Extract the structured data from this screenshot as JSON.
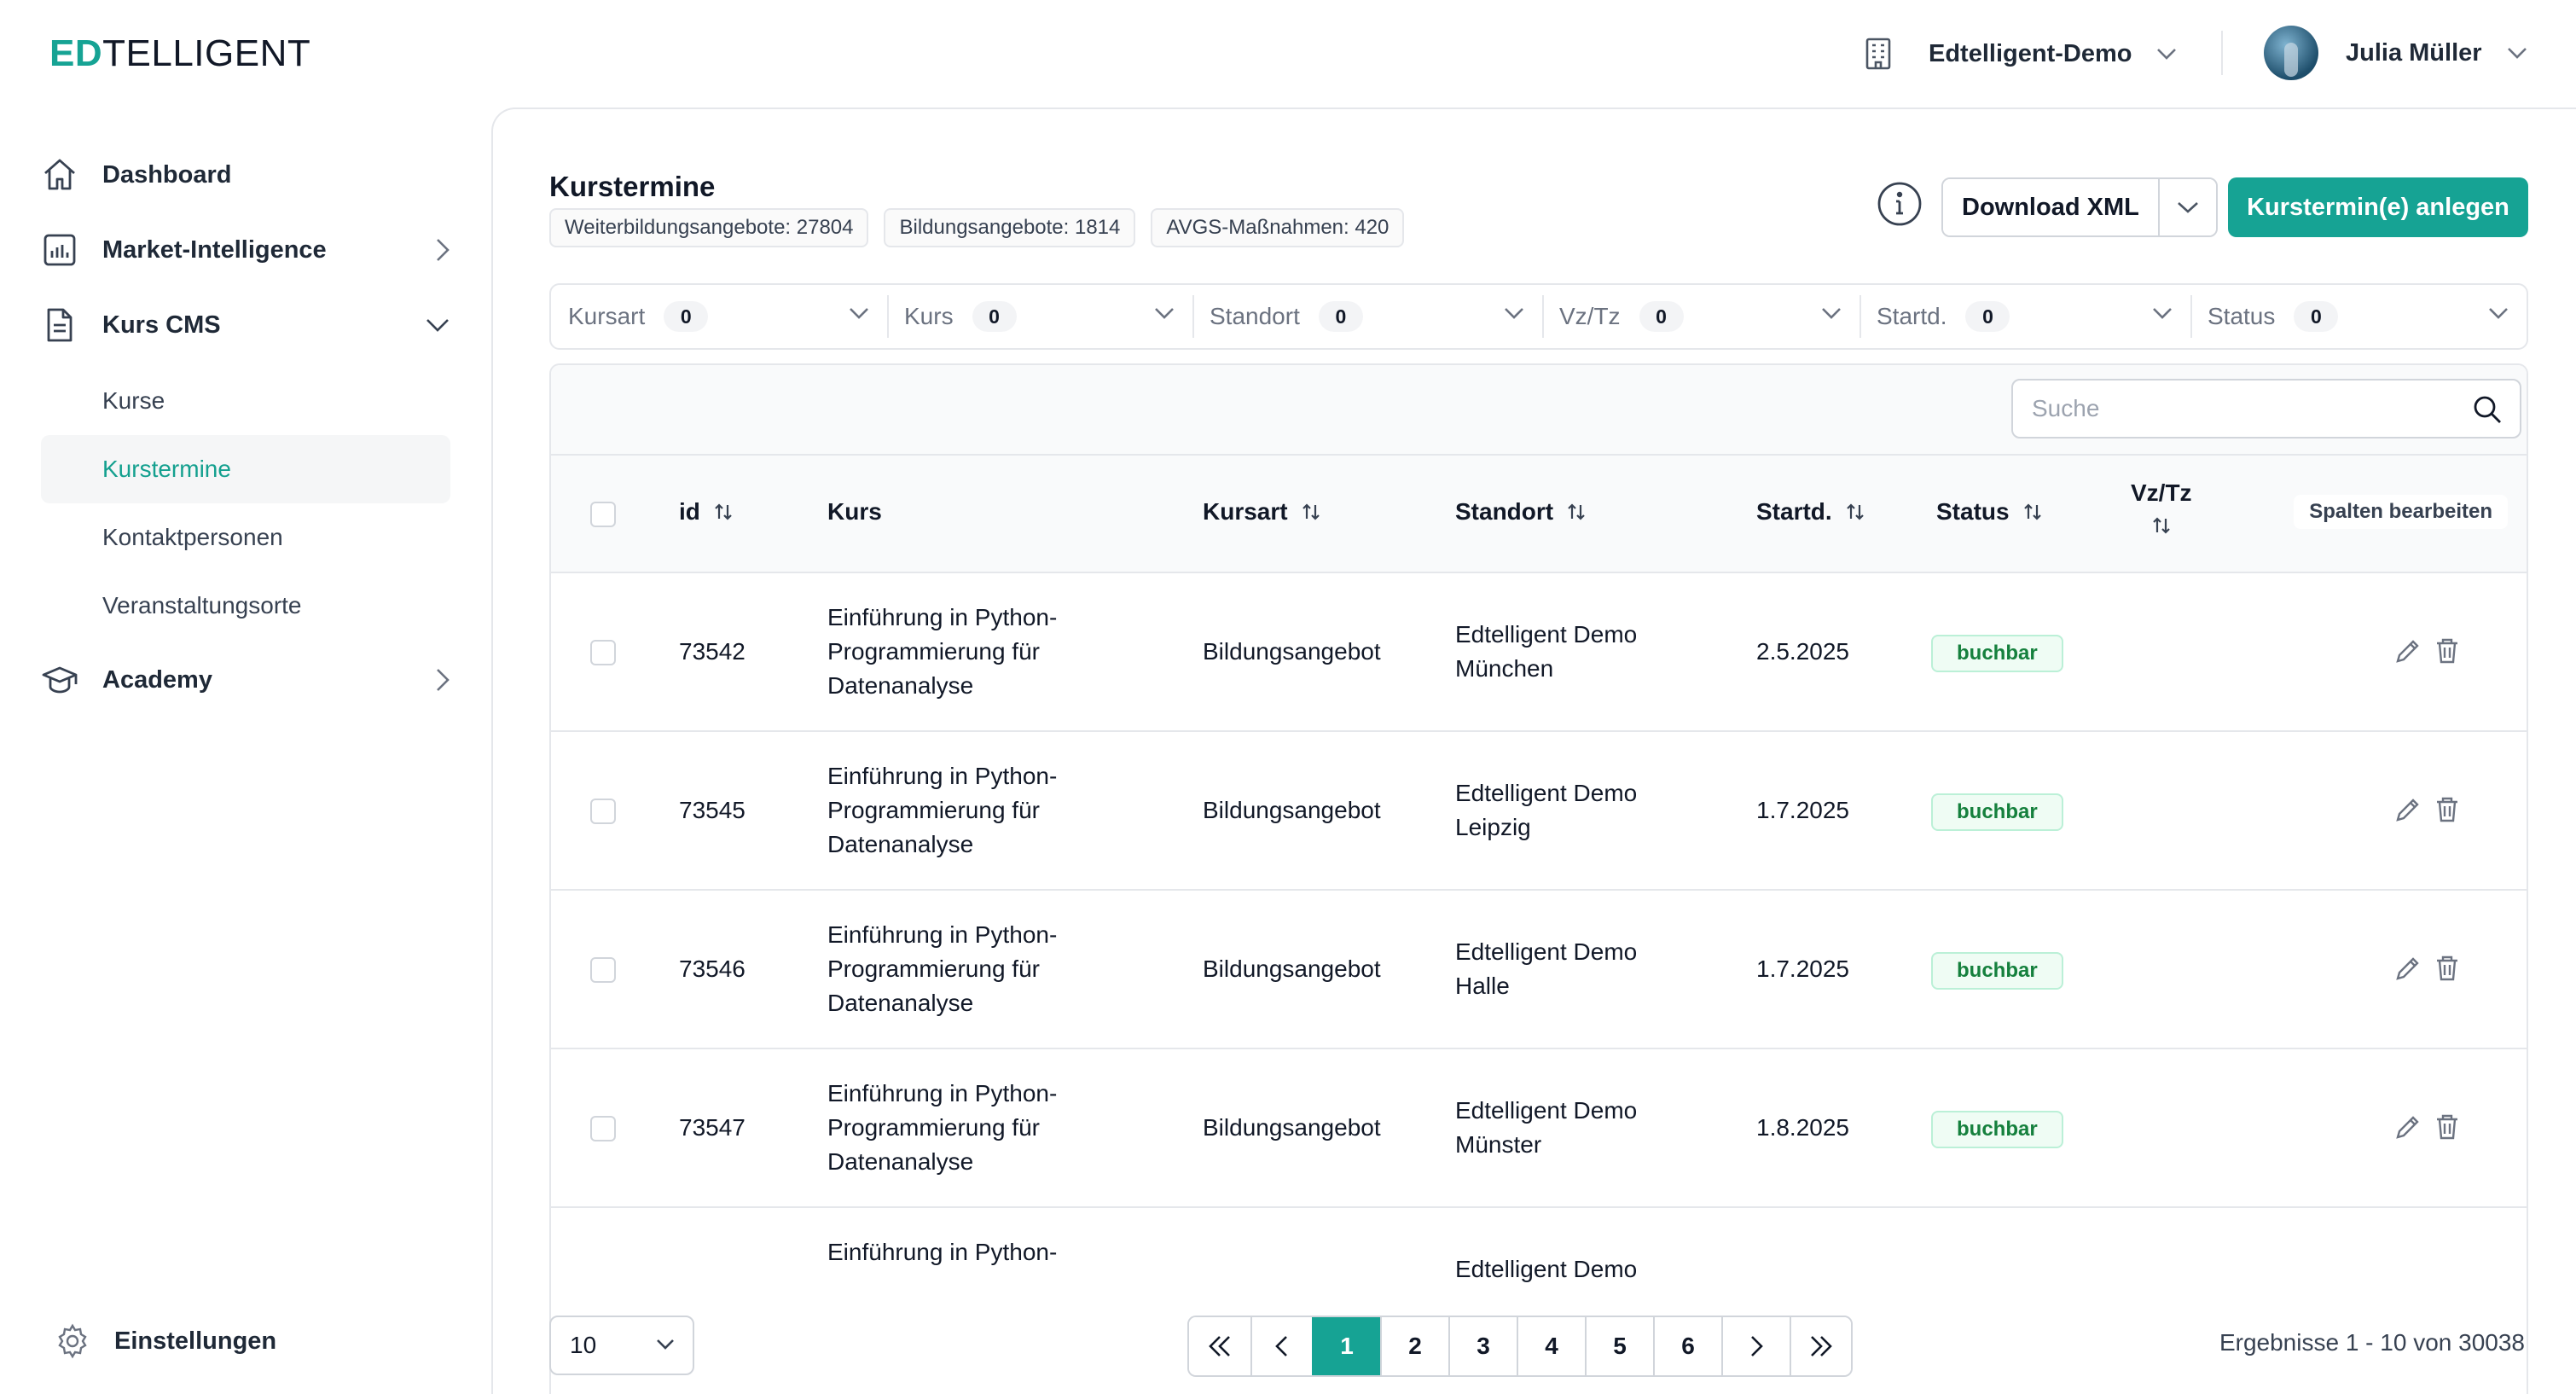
{
  "brand": {
    "logo_accent": "ED",
    "logo_rest": "TELLIGENT",
    "accent_color": "#16a394"
  },
  "header": {
    "org_name": "Edtelligent-Demo",
    "user_name": "Julia Müller"
  },
  "sidebar": {
    "items": [
      {
        "label": "Dashboard",
        "icon": "home-icon"
      },
      {
        "label": "Market-Intelligence",
        "icon": "bar-chart-icon"
      },
      {
        "label": "Kurs CMS",
        "icon": "document-icon"
      }
    ],
    "sub_items": [
      "Kurse",
      "Kurstermine",
      "Kontaktpersonen",
      "Veranstaltungsorte"
    ],
    "academy": {
      "label": "Academy",
      "icon": "graduation-cap-icon"
    },
    "settings": {
      "label": "Einstellungen",
      "icon": "gear-icon"
    }
  },
  "page": {
    "title": "Kurstermine",
    "chips": [
      "Weiterbildungsangebote: 27804",
      "Bildungsangebote: 1814",
      "AVGS-Maßnahmen: 420"
    ],
    "download_label": "Download XML",
    "create_label": "Kurstermin(e) anlegen"
  },
  "filters": [
    {
      "label": "Kursart",
      "count": "0"
    },
    {
      "label": "Kurs",
      "count": "0"
    },
    {
      "label": "Standort",
      "count": "0"
    },
    {
      "label": "Vz/Tz",
      "count": "0"
    },
    {
      "label": "Startd.",
      "count": "0"
    },
    {
      "label": "Status",
      "count": "0"
    }
  ],
  "search": {
    "placeholder": "Suche"
  },
  "table": {
    "columns": {
      "id": "id",
      "kurs": "Kurs",
      "kursart": "Kursart",
      "standort": "Standort",
      "startd": "Startd.",
      "status": "Status",
      "vztz": "Vz/Tz"
    },
    "edit_columns_label": "Spalten bearbeiten",
    "rows": [
      {
        "id": "73542",
        "kurs_l1": "Einführung in Python-",
        "kurs_l2": "Programmierung für",
        "kurs_l3": "Datenanalyse",
        "kursart": "Bildungsangebot",
        "standort_l1": "Edtelligent Demo",
        "standort_l2": "München",
        "startd": "2.5.2025",
        "status": "buchbar"
      },
      {
        "id": "73545",
        "kurs_l1": "Einführung in Python-",
        "kurs_l2": "Programmierung für",
        "kurs_l3": "Datenanalyse",
        "kursart": "Bildungsangebot",
        "standort_l1": "Edtelligent Demo",
        "standort_l2": "Leipzig",
        "startd": "1.7.2025",
        "status": "buchbar"
      },
      {
        "id": "73546",
        "kurs_l1": "Einführung in Python-",
        "kurs_l2": "Programmierung für",
        "kurs_l3": "Datenanalyse",
        "kursart": "Bildungsangebot",
        "standort_l1": "Edtelligent Demo",
        "standort_l2": "Halle",
        "startd": "1.7.2025",
        "status": "buchbar"
      },
      {
        "id": "73547",
        "kurs_l1": "Einführung in Python-",
        "kurs_l2": "Programmierung für",
        "kurs_l3": "Datenanalyse",
        "kursart": "Bildungsangebot",
        "standort_l1": "Edtelligent Demo",
        "standort_l2": "Münster",
        "startd": "1.8.2025",
        "status": "buchbar"
      },
      {
        "kurs_l1": "Einführung in Python-",
        "standort_l1": "Edtelligent Demo"
      }
    ]
  },
  "pagination": {
    "page_size": "10",
    "pages": [
      "1",
      "2",
      "3",
      "4",
      "5",
      "6"
    ],
    "current_page": "1",
    "results_text": "Ergebnisse 1 - 10 von 30038"
  }
}
